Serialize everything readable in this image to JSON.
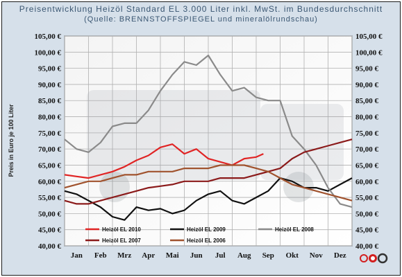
{
  "header": {
    "title": "Preisentwicklung Heizöl Standard EL 3.000 Liter inkl. MwSt. im Bundesdurchschnitt",
    "subtitle": "(Quelle: BRENNSTOFFSPIEGEL und mineralölrundschau)"
  },
  "chart_data": {
    "type": "line",
    "title": "Preisentwicklung Heizöl Standard EL 3.000 Liter inkl. MwSt. im Bundesdurchschnitt",
    "subtitle": "(Quelle: BRENNSTOFFSPIEGEL und mineralölrundschau)",
    "xlabel": "",
    "ylabel": "Preis in Euro je 100 Liter",
    "ylim": [
      40,
      105
    ],
    "ytick_labels": [
      "40,00 €",
      "45,00 €",
      "50,00 €",
      "55,00 €",
      "60,00 €",
      "65,00 €",
      "70,00 €",
      "75,00 €",
      "80,00 €",
      "85,00 €",
      "90,00 €",
      "95,00 €",
      "100,00 €",
      "105,00 €"
    ],
    "yticks": [
      40,
      45,
      50,
      55,
      60,
      65,
      70,
      75,
      80,
      85,
      90,
      95,
      100,
      105
    ],
    "x_categories": [
      "Jan",
      "Feb",
      "Mrz",
      "Apr",
      "Mai",
      "Jun",
      "Jul",
      "Aug",
      "Sep",
      "Okt",
      "Nov",
      "Dez"
    ],
    "grid": true,
    "legend_position": "bottom-inside",
    "series": [
      {
        "name": "Heizöl EL 2010",
        "color": "#e02424",
        "x": [
          1,
          1.5,
          2,
          2.5,
          3,
          3.5,
          4,
          4.5,
          5,
          5.5,
          6,
          6.5,
          7,
          7.5,
          8,
          8.5,
          9,
          9.3
        ],
        "y": [
          62,
          61.5,
          61,
          62,
          63,
          64.5,
          66.5,
          68,
          70.5,
          71.5,
          68.5,
          70,
          67,
          66,
          65,
          67,
          67.5,
          68.5
        ]
      },
      {
        "name": "Heizöl EL 2009",
        "color": "#111111",
        "x": [
          1,
          1.5,
          2,
          2.5,
          3,
          3.5,
          4,
          4.5,
          5,
          5.5,
          6,
          6.5,
          7,
          7.5,
          8,
          8.5,
          9,
          9.5,
          10,
          10.5,
          11,
          11.5,
          12,
          12.5,
          13
        ],
        "y": [
          57,
          56,
          54,
          52,
          49,
          48,
          52,
          51,
          51.5,
          50,
          51,
          54,
          56,
          57,
          54,
          53,
          55,
          57,
          61,
          60,
          58,
          58,
          57,
          59,
          61
        ]
      },
      {
        "name": "Heizöl EL 2008",
        "color": "#8a8a8a",
        "x": [
          1,
          1.5,
          2,
          2.5,
          3,
          3.5,
          4,
          4.5,
          5,
          5.5,
          6,
          6.5,
          7,
          7.5,
          8,
          8.5,
          9,
          9.5,
          10,
          10.5,
          11,
          11.5,
          12,
          12.5,
          13
        ],
        "y": [
          73,
          70,
          69,
          72,
          77,
          78,
          78,
          82,
          88,
          93,
          97,
          96,
          99,
          93,
          88,
          89,
          86,
          85,
          85,
          74,
          70,
          65,
          58,
          53,
          52
        ]
      },
      {
        "name": "Heizöl EL 2007",
        "color": "#8b1a1a",
        "x": [
          1,
          1.5,
          2,
          2.5,
          3,
          3.5,
          4,
          4.5,
          5,
          5.5,
          6,
          6.5,
          7,
          7.5,
          8,
          8.5,
          9,
          9.5,
          10,
          10.5,
          11,
          11.5,
          12,
          12.5,
          13
        ],
        "y": [
          54,
          53,
          53,
          54,
          55,
          56,
          57,
          58,
          58.5,
          59,
          60,
          60,
          60,
          61,
          61,
          61,
          62,
          63,
          64,
          67,
          69,
          70,
          71,
          72,
          73
        ]
      },
      {
        "name": "Heizöl EL 2006",
        "color": "#a0522d",
        "x": [
          1,
          1.5,
          2,
          2.5,
          3,
          3.5,
          4,
          4.5,
          5,
          5.5,
          6,
          6.5,
          7,
          7.5,
          8,
          8.5,
          9,
          9.5,
          10,
          10.5,
          11,
          11.5,
          12,
          12.5,
          13
        ],
        "y": [
          58,
          59,
          60,
          60,
          61,
          62,
          62,
          63,
          63,
          63,
          64,
          64,
          64,
          65,
          65,
          65,
          64,
          63,
          61,
          59,
          58,
          57,
          56,
          55,
          54
        ]
      }
    ]
  }
}
